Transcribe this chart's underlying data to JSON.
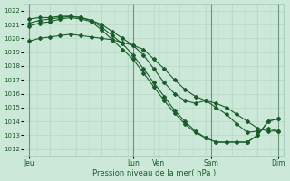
{
  "title": "",
  "xlabel": "Pression niveau de la mer( hPa )",
  "ylabel": "",
  "ylim": [
    1011.5,
    1022.5
  ],
  "yticks": [
    1012,
    1013,
    1014,
    1015,
    1016,
    1017,
    1018,
    1019,
    1020,
    1021,
    1022
  ],
  "bg_color": "#cce8d8",
  "grid_color_minor": "#b8d8c8",
  "grid_color_major": "#a0c8b8",
  "line_color": "#1a5c2a",
  "marker_color": "#1a5c2a",
  "day_sep_color": "#2a6040",
  "xtick_positions": [
    0,
    40,
    50,
    70,
    96
  ],
  "xtick_labels": [
    "Jeu",
    "Lun",
    "Ven",
    "Sam",
    "Dim"
  ],
  "xlim": [
    -2,
    98
  ],
  "line1_x": [
    0,
    4,
    8,
    12,
    16,
    20,
    24,
    28,
    32,
    36,
    40,
    44,
    48,
    52,
    56,
    60,
    64,
    68,
    72,
    76,
    80,
    84,
    88,
    92,
    96
  ],
  "line1_y": [
    1019.8,
    1020.0,
    1020.1,
    1020.2,
    1020.3,
    1020.2,
    1020.1,
    1020.0,
    1019.9,
    1019.7,
    1019.5,
    1019.2,
    1018.5,
    1017.8,
    1017.0,
    1016.3,
    1015.8,
    1015.5,
    1015.3,
    1015.0,
    1014.5,
    1014.0,
    1013.5,
    1013.3,
    1013.3
  ],
  "line2_x": [
    0,
    4,
    8,
    12,
    16,
    20,
    24,
    28,
    32,
    36,
    40,
    44,
    48,
    52,
    56,
    60,
    64,
    68,
    72,
    76,
    80,
    84,
    88,
    92,
    96
  ],
  "line2_y": [
    1021.4,
    1021.5,
    1021.5,
    1021.6,
    1021.6,
    1021.5,
    1021.3,
    1021.0,
    1020.5,
    1020.0,
    1019.5,
    1018.8,
    1017.8,
    1016.8,
    1016.0,
    1015.5,
    1015.3,
    1015.5,
    1015.0,
    1014.5,
    1013.8,
    1013.2,
    1013.3,
    1013.5,
    1013.3
  ],
  "line3_x": [
    0,
    4,
    8,
    12,
    16,
    20,
    24,
    28,
    32,
    36,
    40,
    44,
    48,
    52,
    56,
    60,
    64,
    68,
    72,
    76,
    80,
    84,
    88,
    92,
    96
  ],
  "line3_y": [
    1021.1,
    1021.3,
    1021.4,
    1021.5,
    1021.6,
    1021.5,
    1021.3,
    1020.8,
    1020.2,
    1019.6,
    1018.8,
    1017.8,
    1016.8,
    1015.8,
    1014.8,
    1014.0,
    1013.3,
    1012.8,
    1012.5,
    1012.5,
    1012.5,
    1012.5,
    1013.0,
    1014.0,
    1014.2
  ],
  "line4_x": [
    0,
    4,
    8,
    12,
    16,
    20,
    24,
    28,
    32,
    36,
    40,
    44,
    48,
    52,
    56,
    60,
    64,
    68,
    72,
    76,
    80,
    84,
    88,
    92,
    96
  ],
  "line4_y": [
    1020.9,
    1021.1,
    1021.2,
    1021.4,
    1021.5,
    1021.4,
    1021.2,
    1020.6,
    1019.9,
    1019.2,
    1018.5,
    1017.5,
    1016.5,
    1015.5,
    1014.6,
    1013.8,
    1013.2,
    1012.8,
    1012.5,
    1012.5,
    1012.5,
    1012.5,
    1013.0,
    1014.0,
    1014.2
  ],
  "vline_positions": [
    0,
    40,
    50,
    70,
    96
  ]
}
